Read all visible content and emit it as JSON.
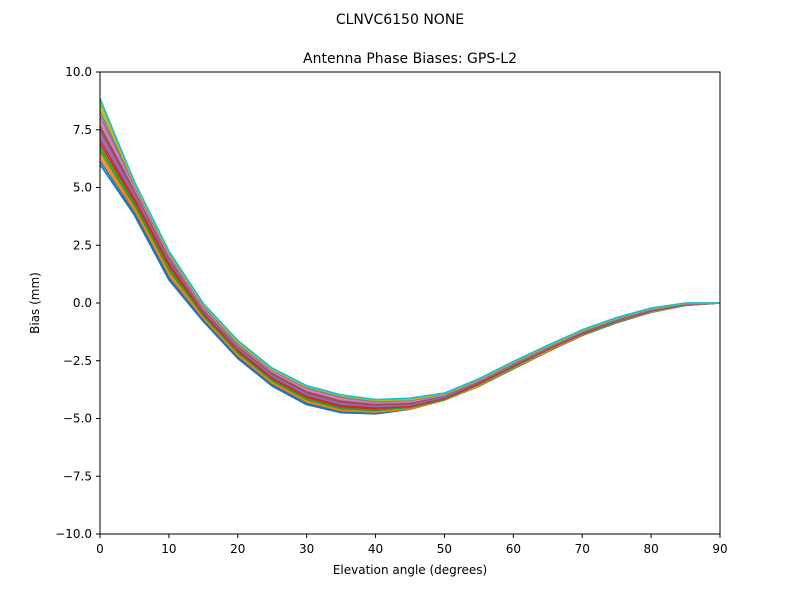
{
  "chart_data": {
    "type": "line",
    "suptitle": "CLNVC6150       NONE",
    "title": "Antenna Phase Biases: GPS-L2",
    "xlabel": "Elevation angle (degrees)",
    "ylabel": "Bias (mm)",
    "xlim": [
      0,
      90
    ],
    "ylim": [
      -10,
      10
    ],
    "xticks": [
      0,
      10,
      20,
      30,
      40,
      50,
      60,
      70,
      80,
      90
    ],
    "xtick_labels": [
      "0",
      "10",
      "20",
      "30",
      "40",
      "50",
      "60",
      "70",
      "80",
      "90"
    ],
    "yticks": [
      10,
      7.5,
      5,
      2.5,
      0,
      -2.5,
      -5,
      -7.5,
      -10
    ],
    "ytick_labels": [
      "10.0",
      "7.5",
      "5.0",
      "2.5",
      "0.0",
      "−2.5",
      "−5.0",
      "−7.5",
      "−10.0"
    ],
    "grid": false,
    "x": [
      0,
      5,
      10,
      15,
      20,
      25,
      30,
      35,
      40,
      45,
      50,
      55,
      60,
      65,
      70,
      75,
      80,
      85,
      90
    ],
    "series_colors": [
      "#1f77b4",
      "#ff7f0e",
      "#2ca02c",
      "#d62728",
      "#9467bd",
      "#8c564b",
      "#e377c2",
      "#7f7f7f",
      "#bcbd22",
      "#17becf"
    ],
    "series": [
      {
        "values": [
          6.0,
          3.8,
          1.0,
          -0.8,
          -2.4,
          -3.6,
          -4.4,
          -4.75,
          -4.8,
          -4.6,
          -4.2,
          -3.6,
          -2.85,
          -2.1,
          -1.4,
          -0.85,
          -0.4,
          -0.1,
          0.0
        ]
      },
      {
        "values": [
          6.3,
          4.0,
          1.2,
          -0.7,
          -2.3,
          -3.5,
          -4.3,
          -4.7,
          -4.75,
          -4.6,
          -4.2,
          -3.6,
          -2.85,
          -2.1,
          -1.4,
          -0.85,
          -0.4,
          -0.1,
          0.0
        ]
      },
      {
        "values": [
          6.6,
          4.2,
          1.4,
          -0.6,
          -2.2,
          -3.4,
          -4.2,
          -4.6,
          -4.7,
          -4.55,
          -4.2,
          -3.55,
          -2.8,
          -2.05,
          -1.35,
          -0.8,
          -0.35,
          -0.08,
          0.0
        ]
      },
      {
        "values": [
          6.9,
          4.4,
          1.6,
          -0.5,
          -2.1,
          -3.3,
          -4.1,
          -4.5,
          -4.6,
          -4.5,
          -4.15,
          -3.5,
          -2.75,
          -2.0,
          -1.35,
          -0.78,
          -0.35,
          -0.07,
          0.0
        ]
      },
      {
        "values": [
          7.2,
          4.6,
          1.8,
          -0.4,
          -2.0,
          -3.2,
          -4.0,
          -4.4,
          -4.5,
          -4.45,
          -4.1,
          -3.45,
          -2.7,
          -1.98,
          -1.3,
          -0.75,
          -0.32,
          -0.06,
          0.0
        ]
      },
      {
        "values": [
          7.5,
          4.8,
          1.9,
          -0.3,
          -1.9,
          -3.1,
          -3.9,
          -4.3,
          -4.45,
          -4.4,
          -4.05,
          -3.4,
          -2.65,
          -1.95,
          -1.28,
          -0.72,
          -0.3,
          -0.05,
          0.0
        ]
      },
      {
        "values": [
          7.8,
          4.9,
          2.0,
          -0.25,
          -1.85,
          -3.0,
          -3.8,
          -4.2,
          -4.35,
          -4.3,
          -4.0,
          -3.38,
          -2.62,
          -1.92,
          -1.25,
          -0.7,
          -0.28,
          -0.04,
          0.0
        ]
      },
      {
        "values": [
          8.1,
          5.0,
          2.1,
          -0.2,
          -1.8,
          -2.95,
          -3.7,
          -4.1,
          -4.3,
          -4.25,
          -3.98,
          -3.35,
          -2.6,
          -1.9,
          -1.22,
          -0.68,
          -0.26,
          -0.03,
          0.0
        ]
      },
      {
        "values": [
          8.5,
          5.1,
          2.15,
          -0.1,
          -1.75,
          -2.9,
          -3.65,
          -4.05,
          -4.25,
          -4.2,
          -3.95,
          -3.32,
          -2.58,
          -1.88,
          -1.2,
          -0.66,
          -0.25,
          -0.02,
          0.0
        ]
      },
      {
        "values": [
          8.8,
          5.2,
          2.2,
          -0.05,
          -1.65,
          -2.85,
          -3.6,
          -4.0,
          -4.2,
          -4.15,
          -3.92,
          -3.3,
          -2.55,
          -1.85,
          -1.18,
          -0.65,
          -0.24,
          -0.01,
          0.0
        ]
      },
      {
        "values": [
          6.15,
          3.9,
          1.1,
          -0.75,
          -2.35,
          -3.55,
          -4.35,
          -4.72,
          -4.78,
          -4.6,
          -4.2,
          -3.6,
          -2.85,
          -2.1,
          -1.4,
          -0.85,
          -0.4,
          -0.1,
          0.0
        ]
      },
      {
        "values": [
          6.45,
          4.1,
          1.3,
          -0.65,
          -2.25,
          -3.45,
          -4.25,
          -4.65,
          -4.72,
          -4.58,
          -4.2,
          -3.58,
          -2.82,
          -2.08,
          -1.38,
          -0.82,
          -0.38,
          -0.09,
          0.0
        ]
      },
      {
        "values": [
          6.75,
          4.3,
          1.5,
          -0.55,
          -2.15,
          -3.35,
          -4.15,
          -4.55,
          -4.65,
          -4.52,
          -4.18,
          -3.52,
          -2.78,
          -2.02,
          -1.35,
          -0.8,
          -0.35,
          -0.08,
          0.0
        ]
      },
      {
        "values": [
          7.05,
          4.5,
          1.7,
          -0.45,
          -2.05,
          -3.25,
          -4.05,
          -4.45,
          -4.55,
          -4.48,
          -4.12,
          -3.48,
          -2.72,
          -1.99,
          -1.32,
          -0.76,
          -0.33,
          -0.06,
          0.0
        ]
      },
      {
        "values": [
          7.35,
          4.7,
          1.85,
          -0.35,
          -1.95,
          -3.15,
          -3.95,
          -4.35,
          -4.48,
          -4.42,
          -4.08,
          -3.42,
          -2.68,
          -1.96,
          -1.29,
          -0.74,
          -0.31,
          -0.05,
          0.0
        ]
      },
      {
        "values": [
          7.65,
          4.85,
          1.95,
          -0.28,
          -1.88,
          -3.05,
          -3.85,
          -4.25,
          -4.4,
          -4.35,
          -4.02,
          -3.39,
          -2.63,
          -1.93,
          -1.26,
          -0.71,
          -0.29,
          -0.04,
          0.0
        ]
      },
      {
        "values": [
          7.95,
          4.95,
          2.05,
          -0.22,
          -1.82,
          -2.98,
          -3.75,
          -4.15,
          -4.32,
          -4.28,
          -3.99,
          -3.36,
          -2.61,
          -1.91,
          -1.23,
          -0.69,
          -0.27,
          -0.03,
          0.0
        ]
      },
      {
        "values": [
          8.3,
          5.05,
          2.12,
          -0.15,
          -1.78,
          -2.92,
          -3.68,
          -4.08,
          -4.28,
          -4.22,
          -3.96,
          -3.33,
          -2.59,
          -1.89,
          -1.21,
          -0.67,
          -0.25,
          -0.02,
          0.0
        ]
      },
      {
        "values": [
          8.65,
          5.15,
          2.18,
          -0.08,
          -1.7,
          -2.88,
          -3.62,
          -4.02,
          -4.22,
          -4.18,
          -3.93,
          -3.31,
          -2.56,
          -1.86,
          -1.19,
          -0.65,
          -0.24,
          -0.01,
          0.0
        ]
      },
      {
        "values": [
          8.85,
          5.25,
          2.25,
          -0.02,
          -1.62,
          -2.82,
          -3.58,
          -3.98,
          -4.18,
          -4.12,
          -3.9,
          -3.28,
          -2.53,
          -1.83,
          -1.16,
          -0.63,
          -0.22,
          0.0,
          0.0
        ]
      }
    ]
  }
}
